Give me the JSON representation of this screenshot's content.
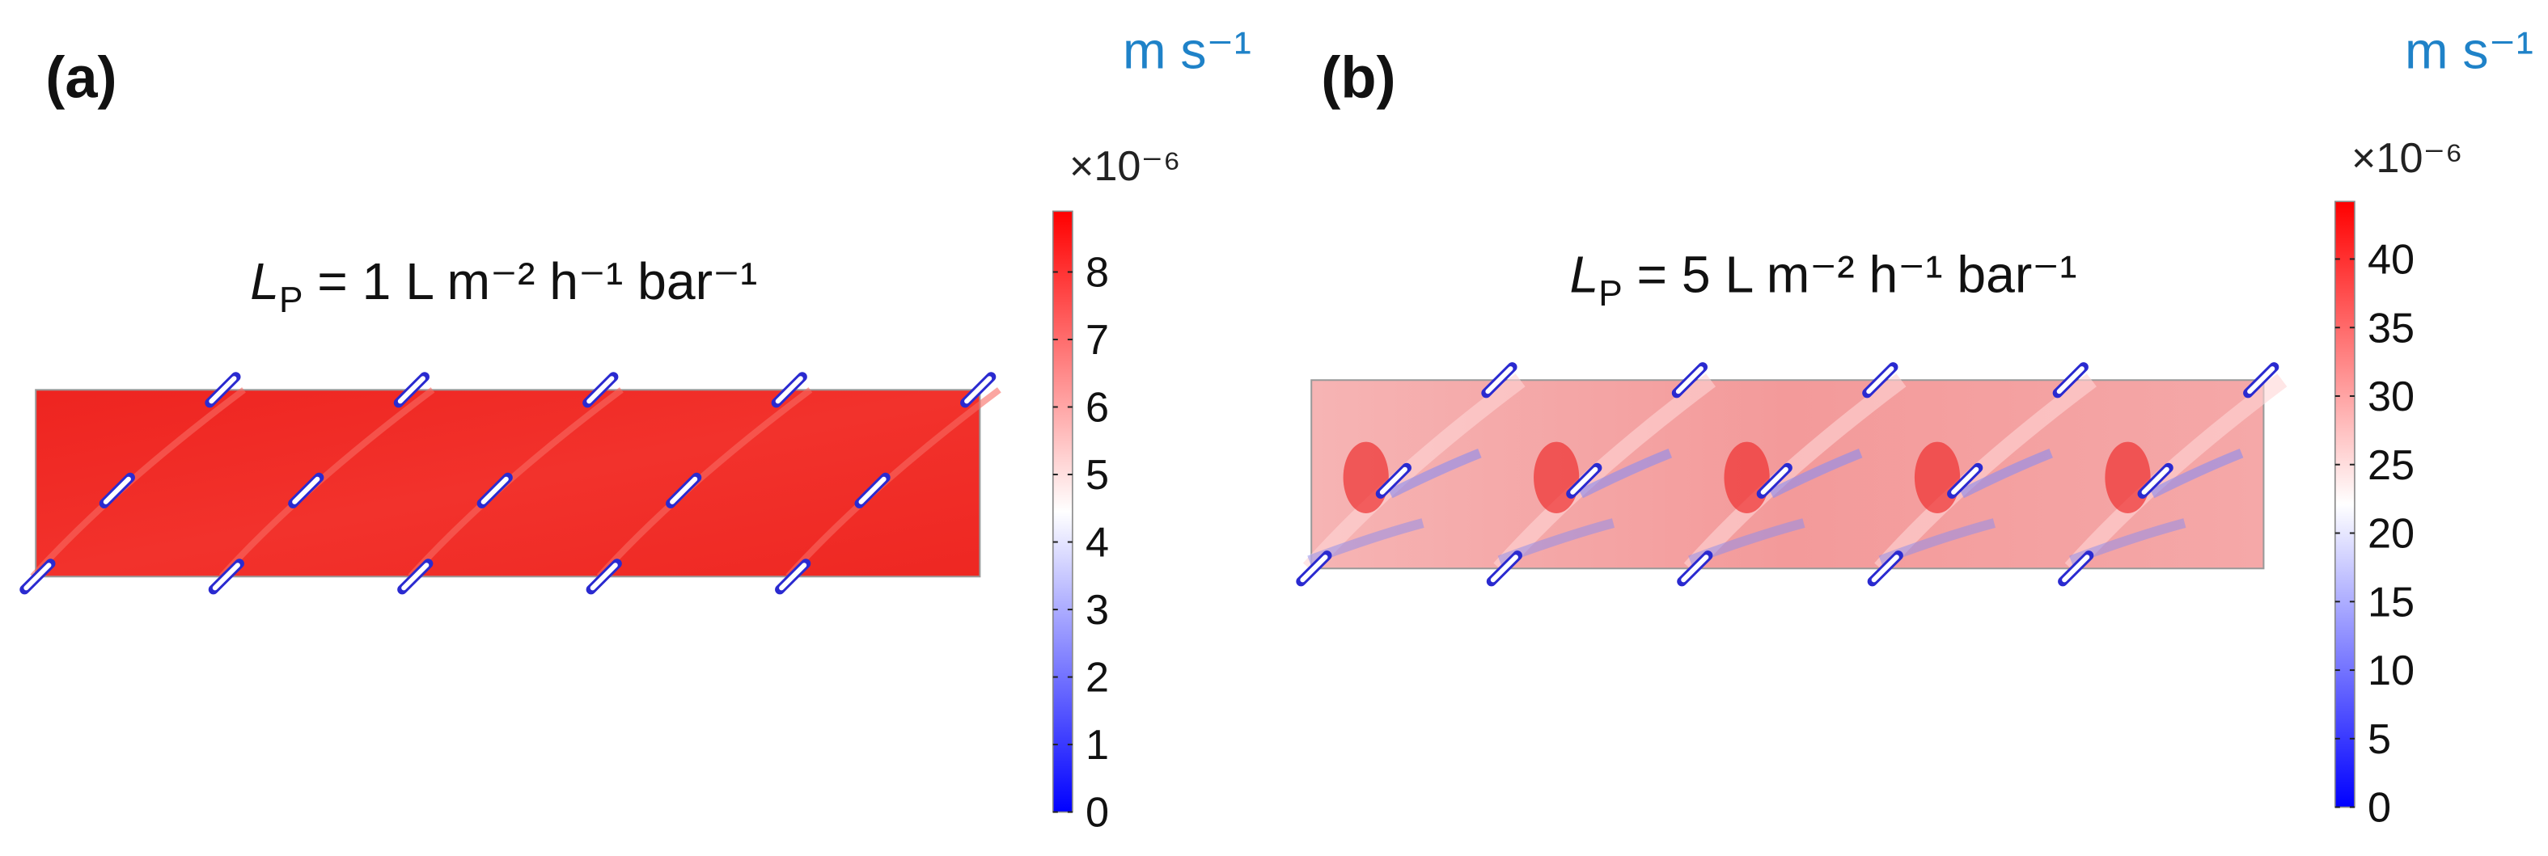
{
  "panels": [
    {
      "label": "(a)",
      "unit": "m s⁻¹",
      "scale": "×10⁻⁶",
      "title": {
        "symbol": "L",
        "subscript": "P",
        "text": " = 1 L m⁻² h⁻¹ bar⁻¹"
      },
      "colorbar": {
        "range": [
          0,
          8.9
        ],
        "ticks": [
          0,
          1,
          2,
          3,
          4,
          5,
          6,
          7,
          8
        ]
      }
    },
    {
      "label": "(b)",
      "unit": "m s⁻¹",
      "scale": "×10⁻⁶",
      "title": {
        "symbol": "L",
        "subscript": "P",
        "text": " = 5 L m⁻² h⁻¹ bar⁻¹"
      },
      "colorbar": {
        "range": [
          0,
          44.2
        ],
        "ticks": [
          0,
          5,
          10,
          15,
          20,
          25,
          30,
          35,
          40
        ]
      }
    }
  ]
}
